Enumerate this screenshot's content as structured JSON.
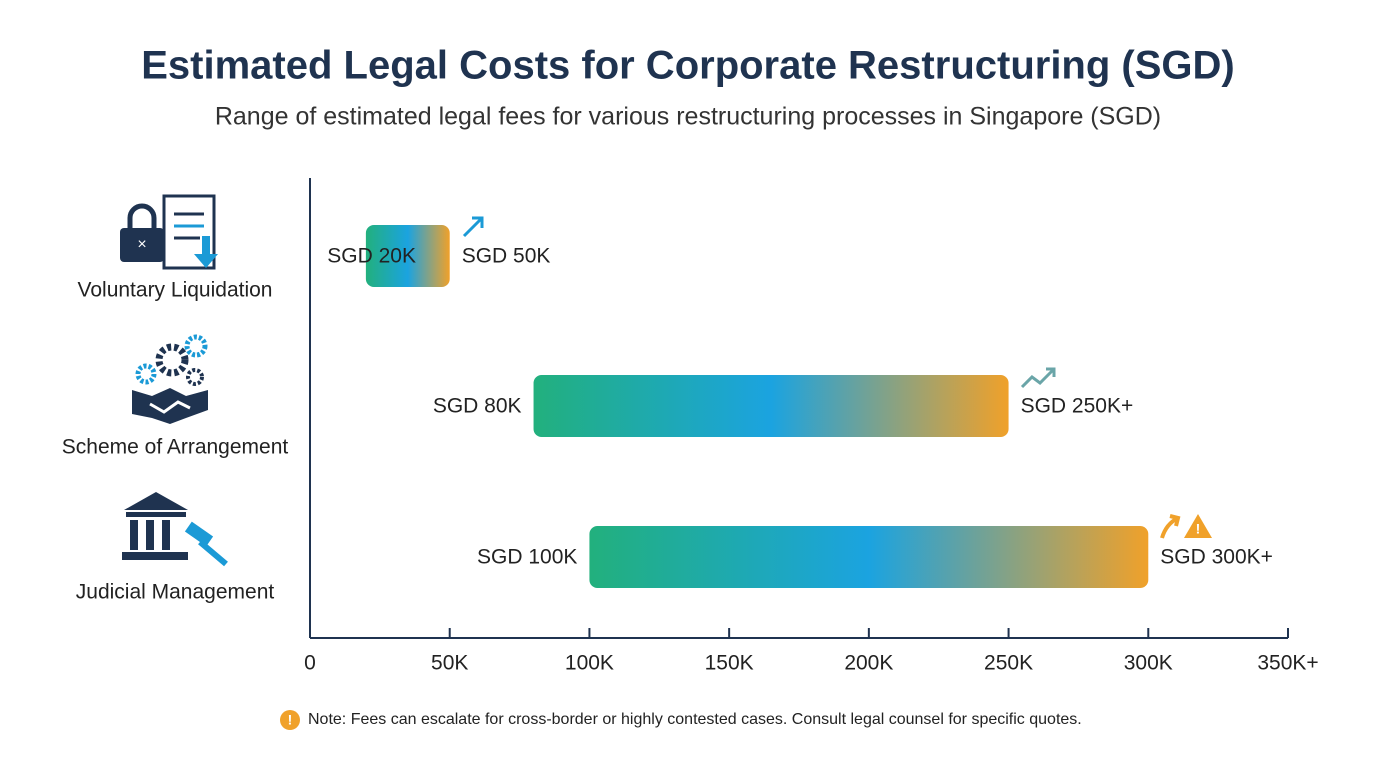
{
  "chart_data": {
    "type": "range-bar",
    "title": "Estimated Legal Costs for Corporate Restructuring (SGD)",
    "subtitle": "Range of estimated legal fees for various restructuring processes in Singapore (SGD)",
    "categories": [
      "Voluntary Liquidation",
      "Scheme of Arrangement",
      "Judicial Management"
    ],
    "series": [
      {
        "name": "Low",
        "values": [
          20000,
          80000,
          100000
        ],
        "value_labels": [
          "SGD 20K",
          "SGD 80K",
          "SGD 100K"
        ]
      },
      {
        "name": "High",
        "values": [
          50000,
          250000,
          300000
        ],
        "value_labels": [
          "SGD 50K",
          "SGD 250K+",
          "SGD 300K+"
        ]
      }
    ],
    "colors": [
      "#22b07d",
      "#1ba3e0",
      "#f0a12a"
    ],
    "xlim": [
      0,
      350000
    ],
    "xticks": [
      0,
      {
        "value": 50000,
        "label": "50K"
      },
      {
        "value": 100000,
        "label": "100K"
      },
      {
        "value": 150000,
        "label": "150K"
      },
      {
        "value": 200000,
        "label": "200K"
      },
      {
        "value": 250000,
        "label": "250K"
      },
      {
        "value": 300000,
        "label": "300K"
      },
      {
        "value": 350000,
        "label": "350K+"
      }
    ],
    "note": "Note: Fees can escalate for cross-border or highly contested cases. Consult legal counsel for specific quotes."
  }
}
